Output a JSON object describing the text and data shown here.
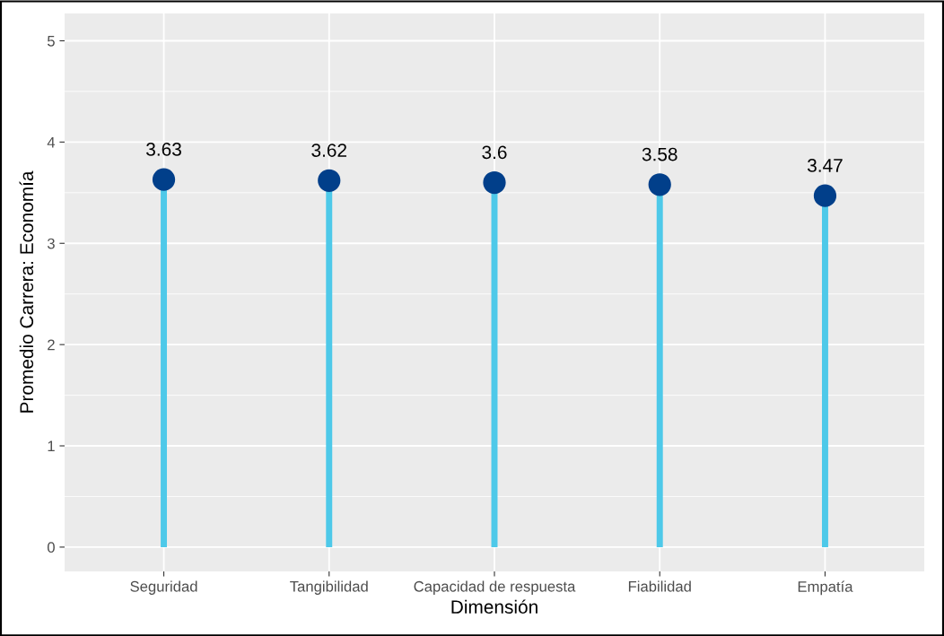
{
  "chart_data": {
    "type": "lollipop",
    "xlabel": "Dimensión",
    "ylabel": "Promedio Carrera: Economía",
    "categories": [
      "Seguridad",
      "Tangibilidad",
      "Capacidad de respuesta",
      "Fiabilidad",
      "Empatía"
    ],
    "color": "#4ec9e9",
    "series": [
      {
        "color": "#013f8a",
        "values": [
          3.63,
          3.62,
          3.6,
          3.58,
          3.47
        ]
      }
    ],
    "data_labels": true,
    "ylim": [
      -0.24,
      5.27
    ],
    "yticks": [
      0,
      1,
      2,
      3,
      4,
      5
    ],
    "grid": true,
    "marker": "circle"
  }
}
